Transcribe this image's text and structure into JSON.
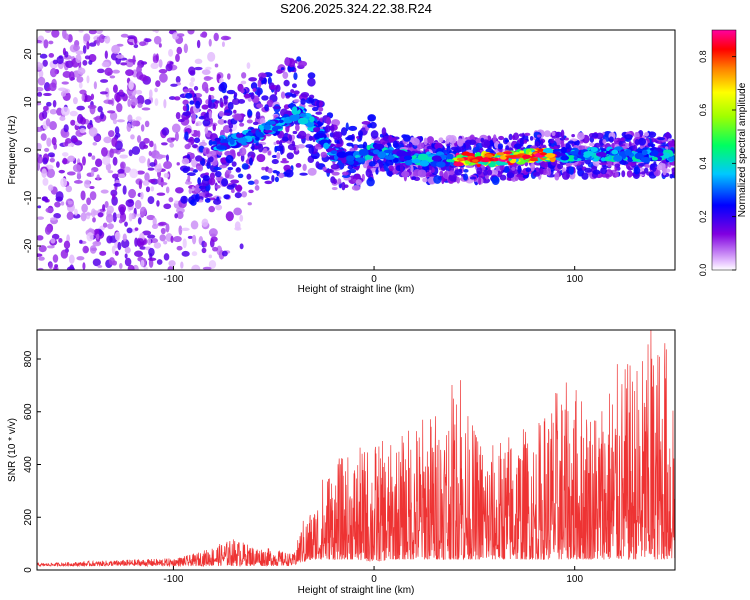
{
  "title": "S206.2025.324.22.38.R24",
  "chart_data": [
    {
      "type": "heatmap",
      "name": "spectrogram",
      "xlabel": "Height of straight line (km)",
      "ylabel": "Frequency (Hz)",
      "xlim": [
        -168,
        150
      ],
      "ylim": [
        -25,
        25
      ],
      "xticks": [
        -100,
        0,
        100
      ],
      "yticks": [
        -20,
        -10,
        0,
        10,
        20
      ],
      "xtick_labels": [
        "-100",
        "0",
        "100"
      ],
      "ytick_labels": [
        "-20",
        "-10",
        "0",
        "10",
        "20"
      ],
      "colorbar": {
        "label": "Normalized spectral amplitude",
        "range": [
          0.0,
          0.9
        ],
        "ticks": [
          0.0,
          0.2,
          0.4,
          0.6,
          0.8
        ],
        "tick_labels": [
          "0.0",
          "0.2",
          "0.4",
          "0.6",
          "0.8"
        ],
        "colormap": "rainbow (white-violet-blue-cyan-green-yellow-orange-red-magenta)"
      },
      "signal_track": {
        "description": "main echo trace frequency vs height",
        "x": [
          -80,
          -60,
          -45,
          -38,
          -30,
          -20,
          -10,
          0,
          10,
          20,
          40,
          60,
          80,
          100,
          120,
          150
        ],
        "y": [
          1,
          3,
          6,
          8,
          5,
          -1,
          -2,
          0,
          -1,
          -2,
          -2,
          -2,
          -1,
          -1,
          -1,
          -1
        ],
        "peak_amplitude_region_x": [
          40,
          90
        ],
        "peak_amplitude": 0.9
      }
    },
    {
      "type": "line",
      "name": "snr",
      "xlabel": "Height of straight line (km)",
      "ylabel": "SNR (10 * v/v)",
      "xlim": [
        -168,
        150
      ],
      "ylim": [
        0,
        910
      ],
      "xticks": [
        -100,
        0,
        100
      ],
      "yticks": [
        0,
        200,
        400,
        600,
        800
      ],
      "xtick_labels": [
        "-100",
        "0",
        "100"
      ],
      "ytick_labels": [
        "0",
        "200",
        "400",
        "600",
        "800"
      ],
      "series_color": "#ee3333",
      "envelope": {
        "x": [
          -168,
          -120,
          -100,
          -90,
          -80,
          -70,
          -60,
          -50,
          -40,
          -35,
          -30,
          -25,
          -20,
          -10,
          0,
          10,
          20,
          30,
          40,
          50,
          60,
          70,
          80,
          90,
          100,
          110,
          120,
          130,
          140,
          150
        ],
        "max": [
          25,
          40,
          45,
          60,
          90,
          120,
          90,
          80,
          60,
          200,
          250,
          380,
          420,
          450,
          500,
          480,
          580,
          620,
          720,
          550,
          480,
          560,
          540,
          700,
          720,
          650,
          780,
          800,
          900,
          860
        ],
        "min": [
          15,
          15,
          15,
          15,
          15,
          15,
          15,
          15,
          15,
          30,
          40,
          40,
          40,
          40,
          30,
          40,
          40,
          40,
          40,
          40,
          40,
          40,
          40,
          40,
          40,
          40,
          40,
          40,
          40,
          40
        ]
      },
      "notable_peaks": [
        {
          "x": 43,
          "y": 720
        },
        {
          "x": 138,
          "y": 910
        },
        {
          "x": 145,
          "y": 860
        }
      ]
    }
  ]
}
